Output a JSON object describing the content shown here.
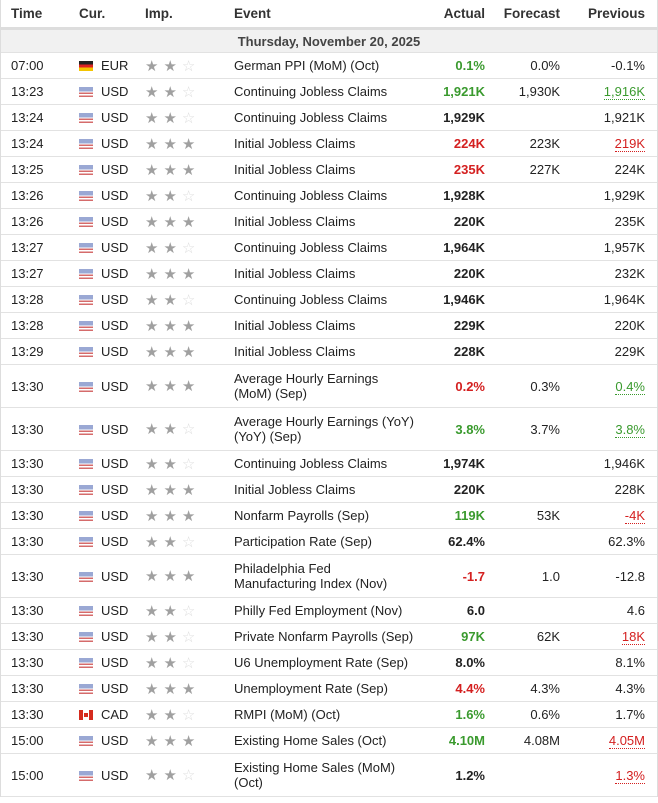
{
  "headers": {
    "time": "Time",
    "cur": "Cur.",
    "imp": "Imp.",
    "event": "Event",
    "actual": "Actual",
    "forecast": "Forecast",
    "previous": "Previous"
  },
  "date": "Thursday, November 20, 2025",
  "colors": {
    "green": "#3a9a2e",
    "red": "#d42020"
  },
  "rows": [
    {
      "time": "07:00",
      "cur": "EUR",
      "stars": 2,
      "event": "German PPI (MoM) (Oct)",
      "actual": "0.1%",
      "actual_color": "green",
      "forecast": "0.0%",
      "previous": "-0.1%",
      "previous_color": ""
    },
    {
      "time": "13:23",
      "cur": "USD",
      "stars": 2,
      "event": "Continuing Jobless Claims",
      "actual": "1,921K",
      "actual_color": "green",
      "forecast": "1,930K",
      "previous": "1,916K",
      "previous_color": "green"
    },
    {
      "time": "13:24",
      "cur": "USD",
      "stars": 2,
      "event": "Continuing Jobless Claims",
      "actual": "1,929K",
      "actual_color": "",
      "forecast": "",
      "previous": "1,921K",
      "previous_color": ""
    },
    {
      "time": "13:24",
      "cur": "USD",
      "stars": 3,
      "event": "Initial Jobless Claims",
      "actual": "224K",
      "actual_color": "red",
      "forecast": "223K",
      "previous": "219K",
      "previous_color": "red"
    },
    {
      "time": "13:25",
      "cur": "USD",
      "stars": 3,
      "event": "Initial Jobless Claims",
      "actual": "235K",
      "actual_color": "red",
      "forecast": "227K",
      "previous": "224K",
      "previous_color": ""
    },
    {
      "time": "13:26",
      "cur": "USD",
      "stars": 2,
      "event": "Continuing Jobless Claims",
      "actual": "1,928K",
      "actual_color": "",
      "forecast": "",
      "previous": "1,929K",
      "previous_color": ""
    },
    {
      "time": "13:26",
      "cur": "USD",
      "stars": 3,
      "event": "Initial Jobless Claims",
      "actual": "220K",
      "actual_color": "",
      "forecast": "",
      "previous": "235K",
      "previous_color": ""
    },
    {
      "time": "13:27",
      "cur": "USD",
      "stars": 2,
      "event": "Continuing Jobless Claims",
      "actual": "1,964K",
      "actual_color": "",
      "forecast": "",
      "previous": "1,957K",
      "previous_color": ""
    },
    {
      "time": "13:27",
      "cur": "USD",
      "stars": 3,
      "event": "Initial Jobless Claims",
      "actual": "220K",
      "actual_color": "",
      "forecast": "",
      "previous": "232K",
      "previous_color": ""
    },
    {
      "time": "13:28",
      "cur": "USD",
      "stars": 2,
      "event": "Continuing Jobless Claims",
      "actual": "1,946K",
      "actual_color": "",
      "forecast": "",
      "previous": "1,964K",
      "previous_color": ""
    },
    {
      "time": "13:28",
      "cur": "USD",
      "stars": 3,
      "event": "Initial Jobless Claims",
      "actual": "229K",
      "actual_color": "",
      "forecast": "",
      "previous": "220K",
      "previous_color": ""
    },
    {
      "time": "13:29",
      "cur": "USD",
      "stars": 3,
      "event": "Initial Jobless Claims",
      "actual": "228K",
      "actual_color": "",
      "forecast": "",
      "previous": "229K",
      "previous_color": ""
    },
    {
      "time": "13:30",
      "cur": "USD",
      "stars": 3,
      "event": "Average Hourly Earnings (MoM) (Sep)",
      "actual": "0.2%",
      "actual_color": "red",
      "forecast": "0.3%",
      "previous": "0.4%",
      "previous_color": "green",
      "tall": true
    },
    {
      "time": "13:30",
      "cur": "USD",
      "stars": 2,
      "event": "Average Hourly Earnings (YoY) (YoY) (Sep)",
      "actual": "3.8%",
      "actual_color": "green",
      "forecast": "3.7%",
      "previous": "3.8%",
      "previous_color": "green",
      "tall": true
    },
    {
      "time": "13:30",
      "cur": "USD",
      "stars": 2,
      "event": "Continuing Jobless Claims",
      "actual": "1,974K",
      "actual_color": "",
      "forecast": "",
      "previous": "1,946K",
      "previous_color": ""
    },
    {
      "time": "13:30",
      "cur": "USD",
      "stars": 3,
      "event": "Initial Jobless Claims",
      "actual": "220K",
      "actual_color": "",
      "forecast": "",
      "previous": "228K",
      "previous_color": ""
    },
    {
      "time": "13:30",
      "cur": "USD",
      "stars": 3,
      "event": "Nonfarm Payrolls (Sep)",
      "actual": "119K",
      "actual_color": "green",
      "forecast": "53K",
      "previous": "-4K",
      "previous_color": "red"
    },
    {
      "time": "13:30",
      "cur": "USD",
      "stars": 2,
      "event": "Participation Rate (Sep)",
      "actual": "62.4%",
      "actual_color": "",
      "forecast": "",
      "previous": "62.3%",
      "previous_color": ""
    },
    {
      "time": "13:30",
      "cur": "USD",
      "stars": 3,
      "event": "Philadelphia Fed Manufacturing Index (Nov)",
      "actual": "-1.7",
      "actual_color": "red",
      "forecast": "1.0",
      "previous": "-12.8",
      "previous_color": "",
      "tall": true
    },
    {
      "time": "13:30",
      "cur": "USD",
      "stars": 2,
      "event": "Philly Fed Employment (Nov)",
      "actual": "6.0",
      "actual_color": "",
      "forecast": "",
      "previous": "4.6",
      "previous_color": ""
    },
    {
      "time": "13:30",
      "cur": "USD",
      "stars": 2,
      "event": "Private Nonfarm Payrolls (Sep)",
      "actual": "97K",
      "actual_color": "green",
      "forecast": "62K",
      "previous": "18K",
      "previous_color": "red"
    },
    {
      "time": "13:30",
      "cur": "USD",
      "stars": 2,
      "event": "U6 Unemployment Rate (Sep)",
      "actual": "8.0%",
      "actual_color": "",
      "forecast": "",
      "previous": "8.1%",
      "previous_color": ""
    },
    {
      "time": "13:30",
      "cur": "USD",
      "stars": 3,
      "event": "Unemployment Rate (Sep)",
      "actual": "4.4%",
      "actual_color": "red",
      "forecast": "4.3%",
      "previous": "4.3%",
      "previous_color": ""
    },
    {
      "time": "13:30",
      "cur": "CAD",
      "stars": 2,
      "event": "RMPI (MoM) (Oct)",
      "actual": "1.6%",
      "actual_color": "green",
      "forecast": "0.6%",
      "previous": "1.7%",
      "previous_color": ""
    },
    {
      "time": "15:00",
      "cur": "USD",
      "stars": 3,
      "event": "Existing Home Sales (Oct)",
      "actual": "4.10M",
      "actual_color": "green",
      "forecast": "4.08M",
      "previous": "4.05M",
      "previous_color": "red"
    },
    {
      "time": "15:00",
      "cur": "USD",
      "stars": 2,
      "event": "Existing Home Sales (MoM) (Oct)",
      "actual": "1.2%",
      "actual_color": "",
      "forecast": "",
      "previous": "1.3%",
      "previous_color": "red",
      "tall": true
    }
  ]
}
